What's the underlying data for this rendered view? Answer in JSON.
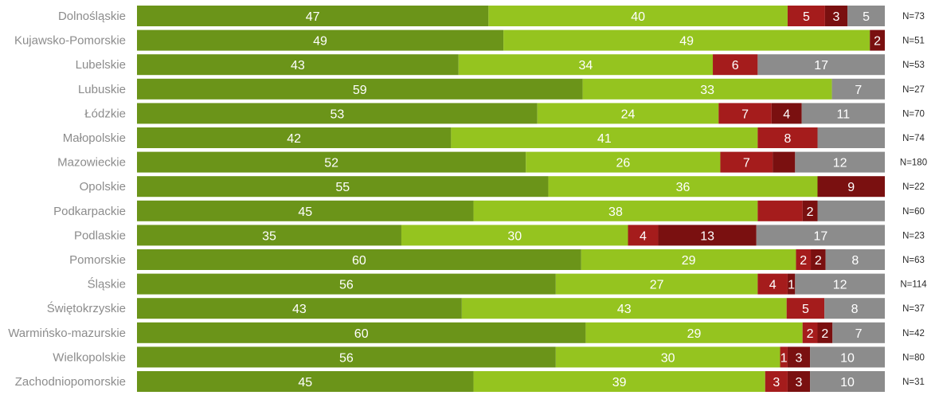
{
  "chart_data": {
    "type": "bar",
    "orientation": "horizontal",
    "stacked": true,
    "normalized": true,
    "legend": "none",
    "grid": false,
    "colors": [
      "#6b9419",
      "#95c41f",
      "#a51c1c",
      "#7a1010",
      "#8c8c8c"
    ],
    "categories": [
      "Dolnośląskie",
      "Kujawsko-Pomorskie",
      "Lubelskie",
      "Lubuskie",
      "Łódzkie",
      "Małopolskie",
      "Mazowieckie",
      "Opolskie",
      "Podkarpackie",
      "Podlaskie",
      "Pomorskie",
      "Śląskie",
      "Świętokrzyskie",
      "Warmińsko-mazurskie",
      "Wielkopolskie",
      "Zachodniopomorskie"
    ],
    "n_labels": [
      "N=73",
      "N=51",
      "N=53",
      "N=27",
      "N=70",
      "N=74",
      "N=180",
      "N=22",
      "N=60",
      "N=23",
      "N=63",
      "N=114",
      "N=37",
      "N=42",
      "N=80",
      "N=31"
    ],
    "series": [
      {
        "values": [
          47,
          49,
          43,
          59,
          53,
          42,
          52,
          55,
          45,
          35,
          60,
          56,
          43,
          60,
          56,
          45
        ]
      },
      {
        "values": [
          40,
          49,
          34,
          33,
          24,
          41,
          26,
          36,
          38,
          30,
          29,
          27,
          43,
          29,
          30,
          39
        ]
      },
      {
        "values": [
          5,
          0,
          6,
          0,
          7,
          8,
          7,
          0,
          6,
          4,
          2,
          4,
          5,
          2,
          1,
          3
        ]
      },
      {
        "values": [
          3,
          2,
          0,
          0,
          4,
          0,
          3,
          9,
          2,
          13,
          2,
          1,
          0,
          2,
          3,
          3
        ]
      },
      {
        "values": [
          5,
          0,
          17,
          7,
          11,
          9,
          12,
          0,
          9,
          17,
          8,
          12,
          8,
          7,
          10,
          10
        ]
      }
    ],
    "shown_labels": [
      [
        "47",
        "40",
        "5",
        "3",
        "5"
      ],
      [
        "49",
        "49",
        "",
        "2",
        ""
      ],
      [
        "43",
        "34",
        "6",
        "",
        "17"
      ],
      [
        "59",
        "33",
        "",
        "",
        "7"
      ],
      [
        "53",
        "24",
        "7",
        "4",
        "11"
      ],
      [
        "42",
        "41",
        "8",
        "",
        ""
      ],
      [
        "52",
        "26",
        "7",
        "",
        "12"
      ],
      [
        "55",
        "36",
        "",
        "9",
        ""
      ],
      [
        "45",
        "38",
        "",
        "2",
        ""
      ],
      [
        "35",
        "30",
        "4",
        "13",
        "17"
      ],
      [
        "60",
        "29",
        "2",
        "2",
        "8"
      ],
      [
        "56",
        "27",
        "4",
        "1",
        "12"
      ],
      [
        "43",
        "43",
        "5",
        "",
        "8"
      ],
      [
        "60",
        "29",
        "2",
        "2",
        "7"
      ],
      [
        "56",
        "30",
        "1",
        "3",
        "10"
      ],
      [
        "45",
        "39",
        "3",
        "3",
        "10"
      ]
    ]
  }
}
